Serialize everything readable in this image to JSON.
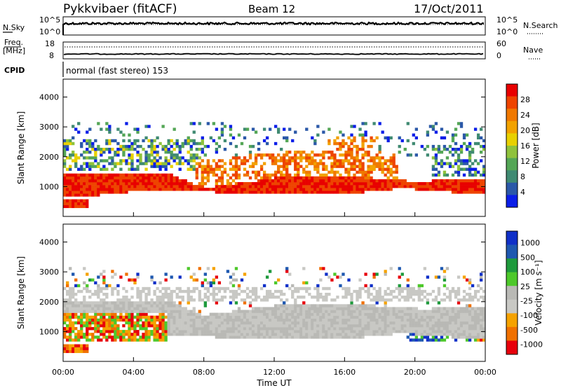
{
  "header": {
    "station": "Pykkvibaer (fitACF)",
    "beam": "Beam 12",
    "date": "17/Oct/2011"
  },
  "nsky_panel": {
    "left_label": "N.Sky",
    "right_label": "N.Search",
    "left_ticks": [
      "10^5",
      "10^0"
    ],
    "right_ticks": [
      "10^5",
      "10^0"
    ]
  },
  "freq_panel": {
    "left_label_1": "Freq.",
    "left_label_2": "[MHz]",
    "right_label": "Nave",
    "left_ticks": [
      "18",
      "8"
    ],
    "right_ticks": [
      "60",
      "0"
    ]
  },
  "cpid": {
    "label": "CPID",
    "mode": "normal (fast stereo) 153"
  },
  "colors": {
    "power": [
      "#0b1ee8",
      "#2b58a8",
      "#3f8a72",
      "#54a656",
      "#8fc23c",
      "#e8d000",
      "#f2a200",
      "#f07800",
      "#ee4400",
      "#e80000"
    ],
    "velocity": [
      "#e8000b",
      "#f07000",
      "#f5a200",
      "#c8c8c4",
      "#b9b9b5",
      "#4dc82a",
      "#1e9a3c",
      "#1e58b0",
      "#1030c8"
    ]
  },
  "chart_data": [
    {
      "type": "heatmap",
      "name": "power",
      "ylabel": "Slant Range [km]",
      "xlabel": "",
      "yticks": [
        "1000",
        "2000",
        "3000",
        "4000"
      ],
      "ylim": [
        0,
        4600
      ],
      "xlim_hours": [
        0,
        24
      ],
      "colorbar_label": "Power [dB]",
      "colorbar_ticks": [
        "4",
        "8",
        "12",
        "16",
        "20",
        "24",
        "28"
      ]
    },
    {
      "type": "heatmap",
      "name": "velocity",
      "ylabel": "Slant Range [km]",
      "xlabel": "Time UT",
      "yticks": [
        "1000",
        "2000",
        "3000",
        "4000"
      ],
      "ylim": [
        0,
        4600
      ],
      "xlim_hours": [
        0,
        24
      ],
      "xticks": [
        "00:00",
        "04:00",
        "08:00",
        "12:00",
        "16:00",
        "20:00",
        "00:00"
      ],
      "colorbar_label": "Velocity [m s⁻¹]",
      "colorbar_ticks": [
        "1000",
        "500",
        "100",
        "25",
        "-25",
        "-100",
        "-500",
        "-1000"
      ]
    }
  ]
}
